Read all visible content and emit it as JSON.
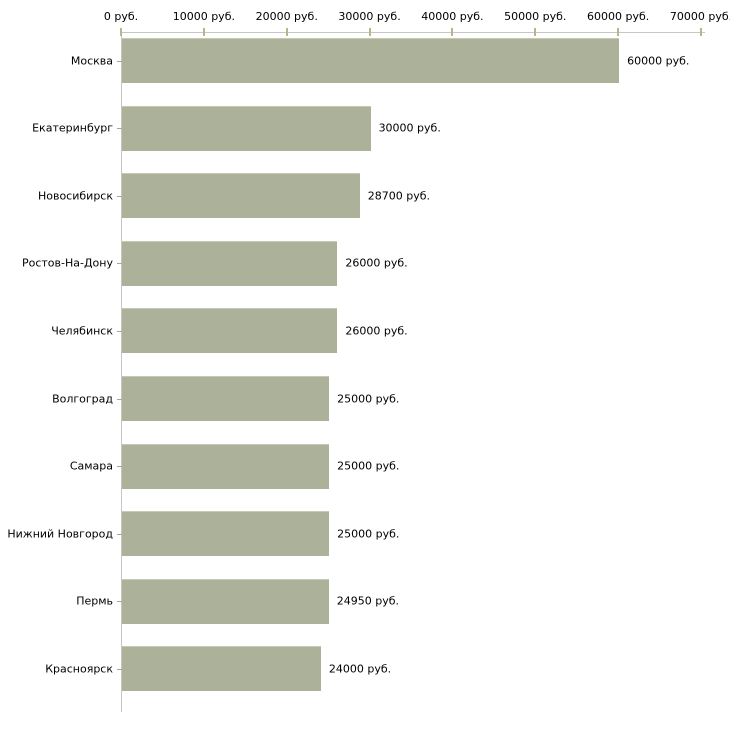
{
  "chart_data": {
    "type": "bar",
    "orientation": "horizontal",
    "title": "",
    "xlabel": "",
    "ylabel": "",
    "unit": "руб.",
    "grid": false,
    "legend": null,
    "categories": [
      "Москва",
      "Екатеринбург",
      "Новосибирск",
      "Ростов-На-Дону",
      "Челябинск",
      "Волгоград",
      "Самара",
      "Нижний Новгород",
      "Пермь",
      "Красноярск"
    ],
    "values": [
      60000,
      30000,
      28700,
      26000,
      26000,
      25000,
      25000,
      25000,
      24950,
      24000
    ],
    "value_labels": [
      "60000 руб.",
      "30000 руб.",
      "28700 руб.",
      "26000 руб.",
      "26000 руб.",
      "25000 руб.",
      "25000 руб.",
      "25000 руб.",
      "24950 руб.",
      "24000 руб."
    ],
    "x_axis": {
      "position": "top",
      "min": 0,
      "max": 70000,
      "ticks": [
        0,
        10000,
        20000,
        30000,
        40000,
        50000,
        60000,
        70000
      ],
      "tick_labels": [
        "0 руб.",
        "10000 руб.",
        "20000 руб.",
        "30000 руб.",
        "40000 руб.",
        "50000 руб.",
        "60000 руб.",
        "70000 руб."
      ]
    },
    "colors": {
      "bar_fill": "#acb199",
      "bar_edge": "#c6c9b4",
      "axis_line": "#c6c6c3",
      "tick_mark": "#b9b58f",
      "category_tick": "#a6a696",
      "text": "#000000",
      "background": "#ffffff"
    }
  }
}
